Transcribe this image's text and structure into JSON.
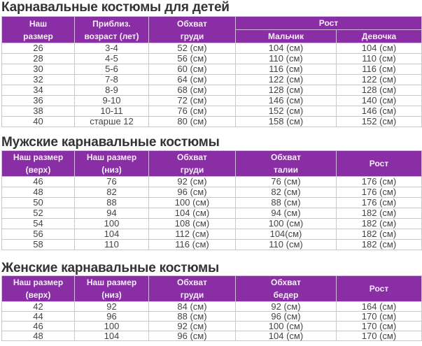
{
  "colors": {
    "header_bg": "#8a2ea6",
    "header_text": "#f7eefa",
    "text": "#444444",
    "border": "#c8c8c8"
  },
  "kids": {
    "title": "Карнавальные костюмы для детей",
    "headers": {
      "size": "Наш размер",
      "size_l1": "Наш",
      "size_l2": "размер",
      "age_l1": "Приблиз.",
      "age_l2": "возраст (лет)",
      "chest_l1": "Обхват",
      "chest_l2": "груди",
      "height": "Рост",
      "boy": "Мальчик",
      "girl": "Девочка"
    },
    "rows": [
      [
        "26",
        "3-4",
        "52 (см)",
        "104 (см)",
        "104 (см)"
      ],
      [
        "28",
        "4-5",
        "56 (см)",
        "110 (см)",
        "110 (см)"
      ],
      [
        "30",
        "5-6",
        "60 (см)",
        "116 (см)",
        "116 (см)"
      ],
      [
        "32",
        "7-8",
        "64 (см)",
        "122 (см)",
        "122 (см)"
      ],
      [
        "34",
        "8-9",
        "68 (см)",
        "128 (см)",
        "128 (см)"
      ],
      [
        "36",
        "9-10",
        "72 (см)",
        "146 (см)",
        "140 (см)"
      ],
      [
        "38",
        "10-11",
        "76 (см)",
        "152 (см)",
        "146 (см)"
      ],
      [
        "40",
        "старше 12",
        "80 (см)",
        "158 (см)",
        "152 (см)"
      ]
    ]
  },
  "men": {
    "title": "Мужские карнавальные костюмы",
    "headers": {
      "top_l1": "Наш размер",
      "top_l2": "(верх)",
      "bottom_l1": "Наш размер",
      "bottom_l2": "(низ)",
      "chest_l1": "Обхват",
      "chest_l2": "груди",
      "waist_l1": "Обхват",
      "waist_l2": "талии",
      "height": "Рост"
    },
    "rows": [
      [
        "46",
        "76",
        "92 (см)",
        "76 (см)",
        "176 (см)"
      ],
      [
        "48",
        "82",
        "96 (см)",
        "82 (см)",
        "176 (см)"
      ],
      [
        "50",
        "88",
        "100 (см)",
        "88 (см)",
        "176 (см)"
      ],
      [
        "52",
        "94",
        "104 (см)",
        "94 (см)",
        "182 (см)"
      ],
      [
        "54",
        "100",
        "108 (см)",
        "100 (см)",
        "182 (см)"
      ],
      [
        "56",
        "104",
        "112 (см)",
        "104(см)",
        "182 (см)"
      ],
      [
        "58",
        "110",
        "116 (см)",
        "110 (см)",
        "182 (см)"
      ]
    ]
  },
  "women": {
    "title": "Женские карнавальные костюмы",
    "headers": {
      "top_l1": "Наш размер",
      "top_l2": "(верх)",
      "bottom_l1": "Наш размер",
      "bottom_l2": "(низ)",
      "chest_l1": "Обхват",
      "chest_l2": "груди",
      "hips_l1": "Обхват",
      "hips_l2": "бедер",
      "height": "Рост"
    },
    "rows": [
      [
        "42",
        "92",
        "84 (см)",
        "92 (см)",
        "164 (см)"
      ],
      [
        "44",
        "96",
        "88 (см)",
        "96 (см)",
        "170 (см)"
      ],
      [
        "46",
        "100",
        "92 (см)",
        "100 (см)",
        "170 (см)"
      ],
      [
        "48",
        "104",
        "96 (см)",
        "104 (см)",
        "170 (см)"
      ]
    ]
  }
}
